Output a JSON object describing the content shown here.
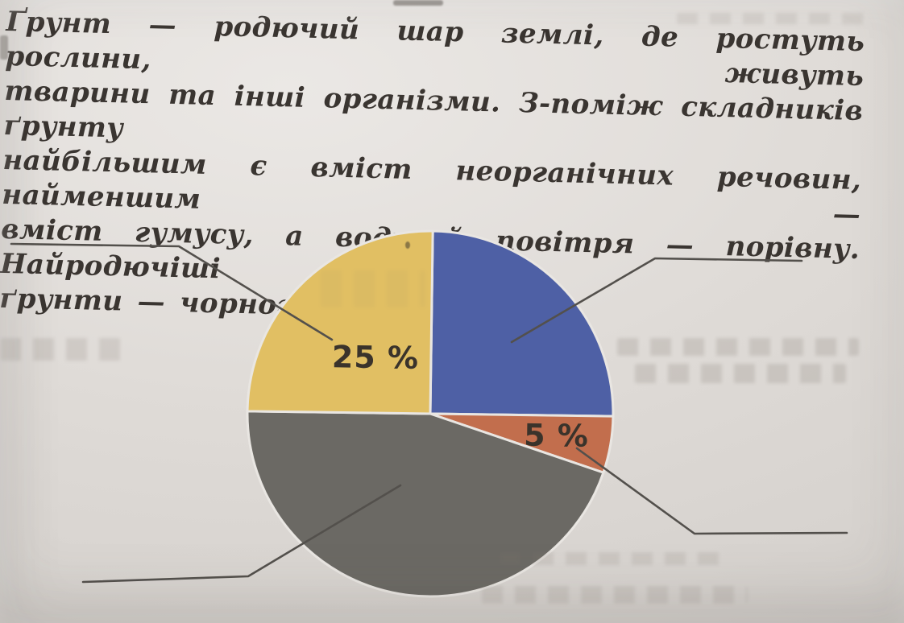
{
  "paragraph": {
    "lines": [
      "Ґрунт — родючий шар землі, де ростуть рослини, живуть",
      "тварини та інші організми. З-поміж складників ґрунту",
      "найбільшим є вміст неорганічних речовин, найменшим —",
      "вміст гумусу, а води й повітря — порівну. Найродючіші",
      "ґрунти — чорноземи."
    ]
  },
  "chart_data": {
    "type": "pie",
    "title": "",
    "start": "top",
    "direction": "clockwise",
    "slices": [
      {
        "id": "blue",
        "value_pct": 25,
        "label": "",
        "color": "#4e60a5",
        "label_r": 0
      },
      {
        "id": "orange",
        "value_pct": 5,
        "label": "5 %",
        "color": "#c26e4d",
        "label_r": 0.7
      },
      {
        "id": "gray",
        "value_pct": 45,
        "label": "",
        "color": "#6b6964",
        "label_r": 0
      },
      {
        "id": "yellow",
        "value_pct": 25,
        "label": "25 %",
        "color": "#e1bf63",
        "label_r": 0.43
      }
    ],
    "annotations": {
      "visible_percent_labels": [
        "25 %",
        "5 %"
      ],
      "leader_lines": 4,
      "answer_blanks": 4
    }
  },
  "colors": {
    "paper": "#dfdbd7",
    "ink": "#3a3531",
    "leader_line": "#53504c",
    "separator": "#e9e6e2",
    "label_ink": "#3a332b"
  }
}
